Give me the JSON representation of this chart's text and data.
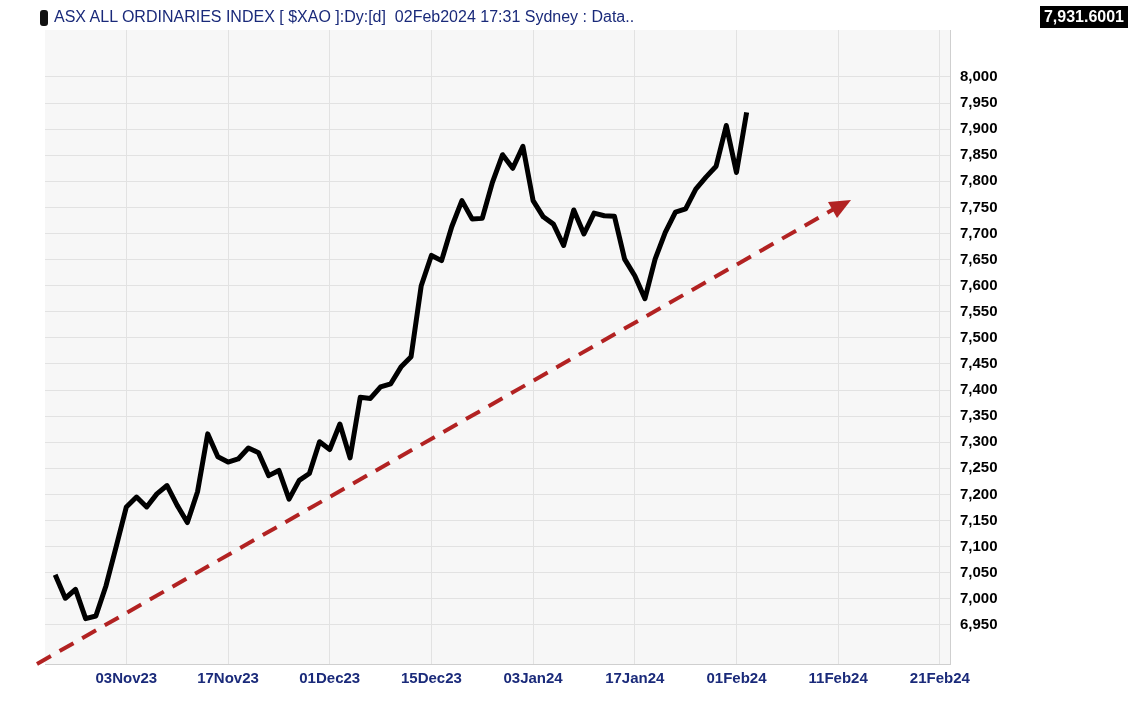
{
  "chart_data": {
    "type": "line",
    "title": "ASX ALL ORDINARIES INDEX [ $XAO ]:Dy:[d]  02Feb2024 17:31 Sydney : Data..",
    "annotations": [
      "7,931.6001"
    ],
    "categories": [
      null,
      null,
      null,
      null,
      null,
      null,
      null,
      null,
      "03Nov23",
      null,
      null,
      null,
      null,
      null,
      null,
      null,
      null,
      null,
      "17Nov23",
      null,
      null,
      null,
      null,
      null,
      null,
      null,
      null,
      null,
      "01Dec23",
      null,
      null,
      null,
      null,
      null,
      null,
      null,
      null,
      null,
      "15Dec23",
      null,
      null,
      null,
      null,
      null,
      null,
      null,
      null,
      null,
      "03Jan24",
      null,
      null,
      null,
      null,
      null,
      null,
      null,
      null,
      null,
      "17Jan24",
      null,
      null,
      null,
      null,
      null,
      null,
      null,
      null,
      null,
      "01Feb24",
      null,
      null,
      null,
      null,
      null,
      null,
      null,
      null,
      null,
      "11Feb24",
      null,
      null,
      null,
      null,
      null,
      null,
      null,
      null,
      null,
      "21Feb24",
      null
    ],
    "series": [
      {
        "color": "#000000",
        "values": [
          null,
          7046,
          7001,
          7018,
          6962,
          6967,
          7025,
          7100,
          7176,
          7195,
          7176,
          7201,
          7217,
          7179,
          7146,
          7205,
          7316,
          7272,
          7262,
          7268,
          7289,
          7280,
          7236,
          7246,
          7191,
          7227,
          7240,
          7301,
          7286,
          7335,
          7270,
          7386,
          7384,
          7406,
          7412,
          7444,
          7464,
          7600,
          7658,
          7648,
          7713,
          7763,
          7728,
          7729,
          7798,
          7851,
          7825,
          7867,
          7763,
          7732,
          7718,
          7677,
          7745,
          7699,
          7739,
          7734,
          7733,
          7651,
          7619,
          7575,
          7651,
          7702,
          7741,
          7747,
          7785,
          7808,
          7829,
          7907,
          7817,
          7932,
          null,
          null,
          null,
          null,
          null,
          null,
          null,
          null,
          null,
          null,
          null,
          null,
          null,
          null,
          null,
          null,
          null,
          null,
          null,
          null
        ]
      }
    ],
    "marker": "none",
    "grid": true,
    "ylim": [
      6875,
      8090
    ],
    "yticks": [
      {
        "value": 6950,
        "label": "6,950"
      },
      {
        "value": 7000,
        "label": "7,000"
      },
      {
        "value": 7050,
        "label": "7,050"
      },
      {
        "value": 7100,
        "label": "7,100"
      },
      {
        "value": 7150,
        "label": "7,150"
      },
      {
        "value": 7200,
        "label": "7,200"
      },
      {
        "value": 7250,
        "label": "7,250"
      },
      {
        "value": 7300,
        "label": "7,300"
      },
      {
        "value": 7350,
        "label": "7,350"
      },
      {
        "value": 7400,
        "label": "7,400"
      },
      {
        "value": 7450,
        "label": "7,450"
      },
      {
        "value": 7500,
        "label": "7,500"
      },
      {
        "value": 7550,
        "label": "7,550"
      },
      {
        "value": 7600,
        "label": "7,600"
      },
      {
        "value": 7650,
        "label": "7,650"
      },
      {
        "value": 7700,
        "label": "7,700"
      },
      {
        "value": 7750,
        "label": "7,750"
      },
      {
        "value": 7800,
        "label": "7,800"
      },
      {
        "value": 7850,
        "label": "7,850"
      },
      {
        "value": 7900,
        "label": "7,900"
      },
      {
        "value": 7950,
        "label": "7,950"
      },
      {
        "value": 8000,
        "label": "8,000"
      }
    ]
  }
}
